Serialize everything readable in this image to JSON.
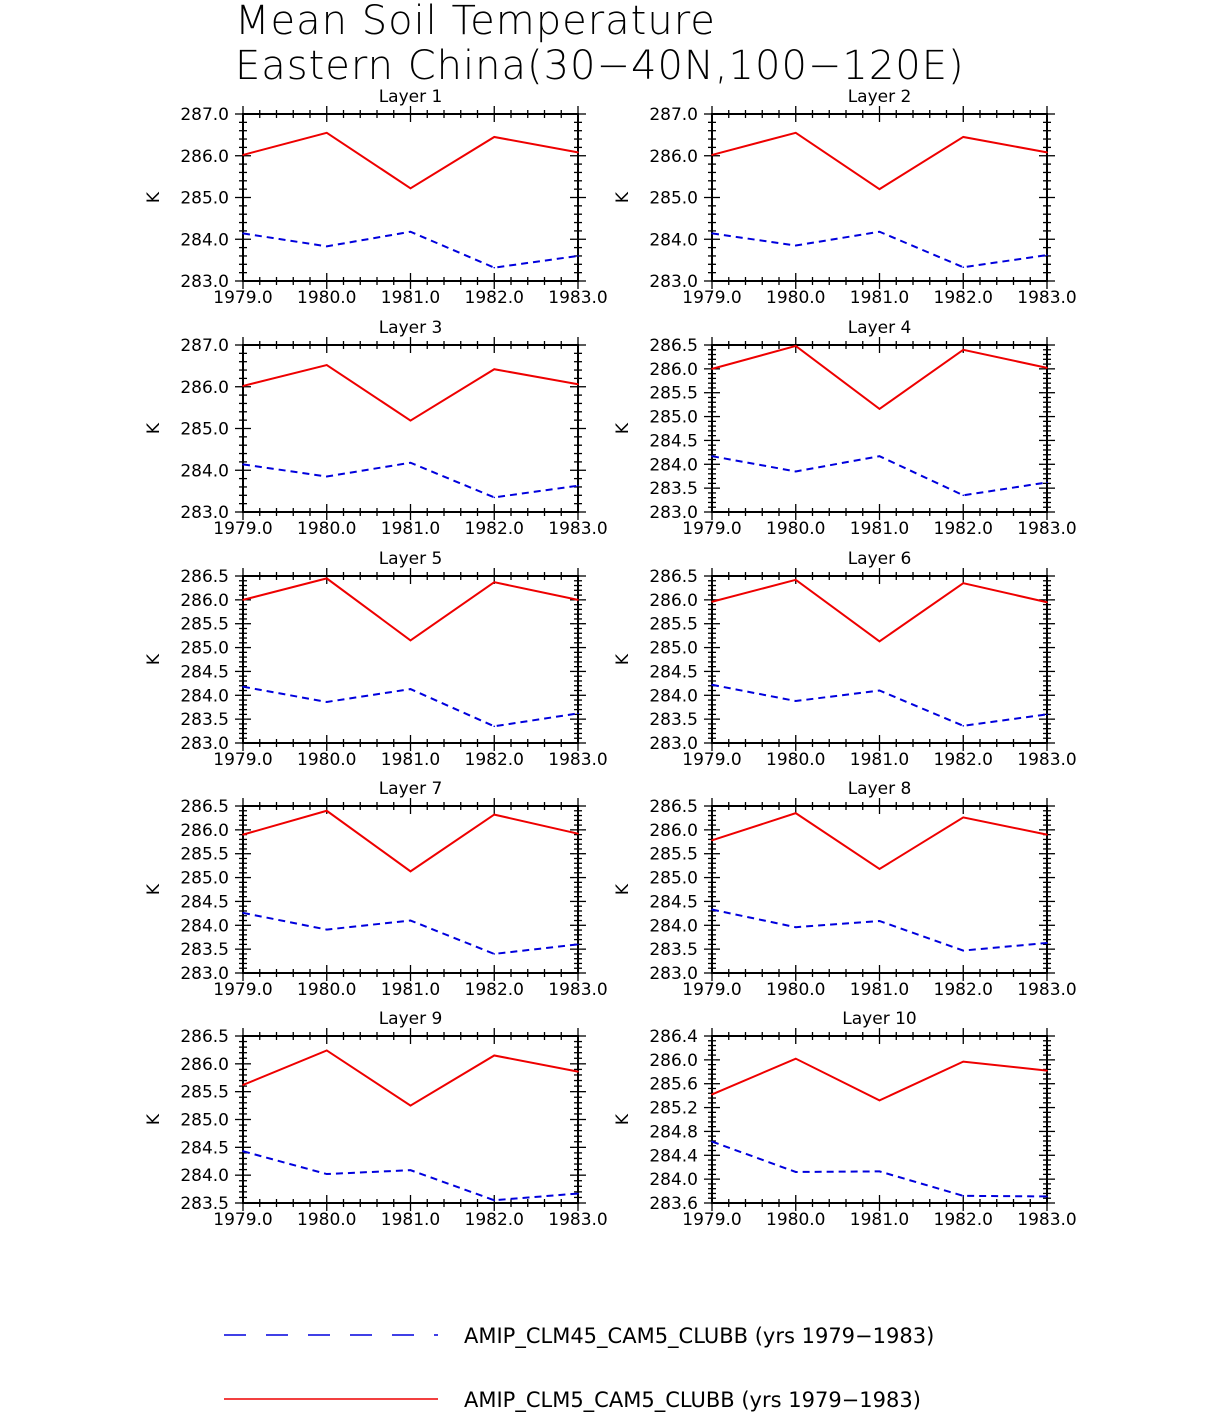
{
  "chart_data": {
    "type": "line",
    "title_lines": [
      "Mean Soil Temperature",
      "Eastern China(30−40N,100−120E)"
    ],
    "x": [
      1979,
      1980,
      1981,
      1982,
      1983
    ],
    "x_tick_labels": [
      "1979.0",
      "1980.0",
      "1981.0",
      "1982.0",
      "1983.0"
    ],
    "xlim": [
      1979,
      1983
    ],
    "colors": {
      "clm45": "#0000dd",
      "clm5": "#ee0000"
    },
    "legend": [
      {
        "key": "clm45",
        "label": "AMIP_CLM45_CAM5_CLUBB (yrs 1979−1983)",
        "style": "dashed"
      },
      {
        "key": "clm5",
        "label": "AMIP_CLM5_CAM5_CLUBB (yrs 1979−1983)",
        "style": "solid"
      }
    ],
    "panels": [
      {
        "title": "Layer 1",
        "ylabel": "K",
        "ylim": [
          283.0,
          287.0
        ],
        "y_ticks": [
          "283.0",
          "284.0",
          "285.0",
          "286.0",
          "287.0"
        ],
        "series": [
          {
            "key": "clm5",
            "values": [
              286.02,
              286.55,
              285.22,
              286.45,
              286.08
            ]
          },
          {
            "key": "clm45",
            "values": [
              284.14,
              283.83,
              284.18,
              283.32,
              283.6
            ]
          }
        ]
      },
      {
        "title": "Layer 2",
        "ylabel": "K",
        "ylim": [
          283.0,
          287.0
        ],
        "y_ticks": [
          "283.0",
          "284.0",
          "285.0",
          "286.0",
          "287.0"
        ],
        "series": [
          {
            "key": "clm5",
            "values": [
              286.02,
              286.55,
              285.2,
              286.45,
              286.08
            ]
          },
          {
            "key": "clm45",
            "values": [
              284.14,
              283.85,
              284.18,
              283.33,
              283.62
            ]
          }
        ]
      },
      {
        "title": "Layer 3",
        "ylabel": "K",
        "ylim": [
          283.0,
          287.0
        ],
        "y_ticks": [
          "283.0",
          "284.0",
          "285.0",
          "286.0",
          "287.0"
        ],
        "series": [
          {
            "key": "clm5",
            "values": [
              286.02,
              286.52,
              285.19,
              286.42,
              286.06
            ]
          },
          {
            "key": "clm45",
            "values": [
              284.14,
              283.85,
              284.18,
              283.35,
              283.63
            ]
          }
        ]
      },
      {
        "title": "Layer 4",
        "ylabel": "K",
        "ylim": [
          283.0,
          286.5
        ],
        "y_ticks": [
          "283.0",
          "283.5",
          "284.0",
          "284.5",
          "285.0",
          "285.5",
          "286.0",
          "286.5"
        ],
        "series": [
          {
            "key": "clm5",
            "values": [
              286.0,
              286.48,
              285.16,
              286.4,
              286.02
            ]
          },
          {
            "key": "clm45",
            "values": [
              284.17,
              283.85,
              284.17,
              283.35,
              283.62
            ]
          }
        ]
      },
      {
        "title": "Layer 5",
        "ylabel": "K",
        "ylim": [
          283.0,
          286.5
        ],
        "y_ticks": [
          "283.0",
          "283.5",
          "284.0",
          "284.5",
          "285.0",
          "285.5",
          "286.0",
          "286.5"
        ],
        "series": [
          {
            "key": "clm5",
            "values": [
              286.0,
              286.45,
              285.15,
              286.37,
              286.0
            ]
          },
          {
            "key": "clm45",
            "values": [
              284.18,
              283.86,
              284.13,
              283.35,
              283.62
            ]
          }
        ]
      },
      {
        "title": "Layer 6",
        "ylabel": "K",
        "ylim": [
          283.0,
          286.5
        ],
        "y_ticks": [
          "283.0",
          "283.5",
          "284.0",
          "284.5",
          "285.0",
          "285.5",
          "286.0",
          "286.5"
        ],
        "series": [
          {
            "key": "clm5",
            "values": [
              285.96,
              286.42,
              285.13,
              286.35,
              285.95
            ]
          },
          {
            "key": "clm45",
            "values": [
              284.22,
              283.88,
              284.1,
              283.36,
              283.6
            ]
          }
        ]
      },
      {
        "title": "Layer 7",
        "ylabel": "K",
        "ylim": [
          283.0,
          286.5
        ],
        "y_ticks": [
          "283.0",
          "283.5",
          "284.0",
          "284.5",
          "285.0",
          "285.5",
          "286.0",
          "286.5"
        ],
        "series": [
          {
            "key": "clm5",
            "values": [
              285.9,
              286.4,
              285.13,
              286.32,
              285.92
            ]
          },
          {
            "key": "clm45",
            "values": [
              284.26,
              283.91,
              284.1,
              283.4,
              283.6
            ]
          }
        ]
      },
      {
        "title": "Layer 8",
        "ylabel": "K",
        "ylim": [
          283.0,
          286.5
        ],
        "y_ticks": [
          "283.0",
          "283.5",
          "284.0",
          "284.5",
          "285.0",
          "285.5",
          "286.0",
          "286.5"
        ],
        "series": [
          {
            "key": "clm5",
            "values": [
              285.78,
              286.35,
              285.18,
              286.26,
              285.9
            ]
          },
          {
            "key": "clm45",
            "values": [
              284.33,
              283.96,
              284.09,
              283.47,
              283.63
            ]
          }
        ]
      },
      {
        "title": "Layer 9",
        "ylabel": "K",
        "ylim": [
          283.5,
          286.5
        ],
        "y_ticks": [
          "283.5",
          "284.0",
          "284.5",
          "285.0",
          "285.5",
          "286.0",
          "286.5"
        ],
        "series": [
          {
            "key": "clm5",
            "values": [
              285.62,
              286.24,
              285.25,
              286.15,
              285.86
            ]
          },
          {
            "key": "clm45",
            "values": [
              284.43,
              284.02,
              284.09,
              283.55,
              283.67
            ]
          }
        ]
      },
      {
        "title": "Layer 10",
        "ylabel": "K",
        "ylim": [
          283.6,
          286.4
        ],
        "y_ticks": [
          "283.6",
          "284.0",
          "284.4",
          "284.8",
          "285.2",
          "285.6",
          "286.0",
          "286.4"
        ],
        "series": [
          {
            "key": "clm5",
            "values": [
              285.42,
              286.02,
              285.32,
              285.97,
              285.82
            ]
          },
          {
            "key": "clm45",
            "values": [
              284.63,
              284.12,
              284.13,
              283.72,
              283.71
            ]
          }
        ]
      }
    ]
  }
}
